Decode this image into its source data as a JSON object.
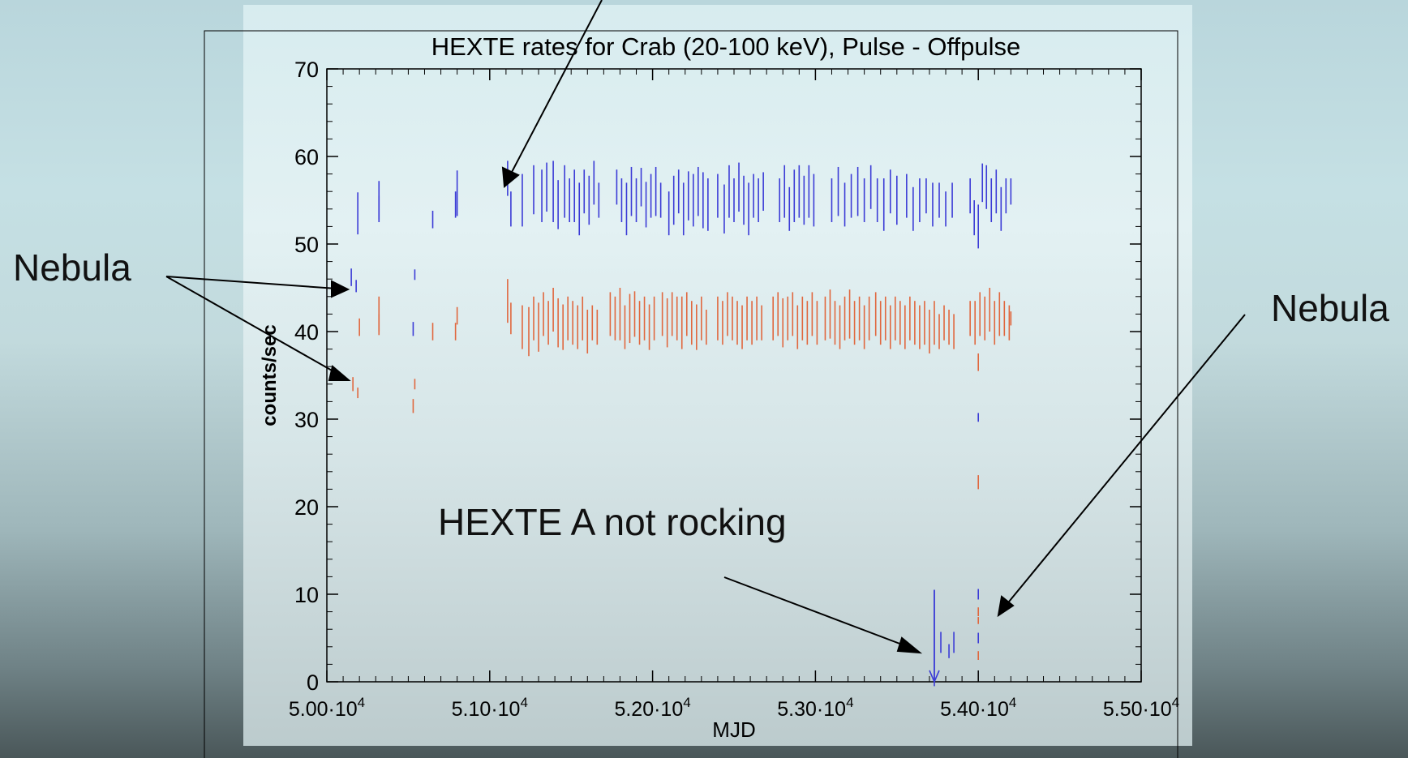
{
  "annotations": {
    "nebula_left": "Nebula",
    "nebula_right": "Nebula",
    "not_rocking": "HEXTE A not rocking"
  },
  "chart_data": {
    "type": "scatter",
    "title": "HEXTE rates for Crab (20-100 keV), Pulse - Offpulse",
    "xlabel": "MJD",
    "ylabel": "counts/sec",
    "xlim": [
      50000,
      55000
    ],
    "ylim": [
      0,
      70
    ],
    "x_ticks": [
      50000,
      51000,
      52000,
      53000,
      54000,
      55000
    ],
    "x_tick_labels": [
      {
        "mantissa": "5.00",
        "exp": "4"
      },
      {
        "mantissa": "5.10",
        "exp": "4"
      },
      {
        "mantissa": "5.20",
        "exp": "4"
      },
      {
        "mantissa": "5.30",
        "exp": "4"
      },
      {
        "mantissa": "5.40",
        "exp": "4"
      },
      {
        "mantissa": "5.50",
        "exp": "4"
      }
    ],
    "y_ticks": [
      0,
      10,
      20,
      30,
      40,
      50,
      60,
      70
    ],
    "y_tick_labels": [
      "0",
      "10",
      "20",
      "30",
      "40",
      "50",
      "60",
      "70"
    ],
    "grid": false,
    "legend": "none",
    "series": [
      {
        "color": "#3b3bd6",
        "points": [
          [
            50150,
            46.2,
            1.0
          ],
          [
            50180,
            45.2,
            0.7
          ],
          [
            50190,
            53.5,
            2.4
          ],
          [
            50320,
            55.0,
            2.2
          ],
          [
            50320,
            54.0,
            1.5
          ],
          [
            50540,
            46.5,
            0.6
          ],
          [
            50530,
            40.3,
            0.8
          ],
          [
            50650,
            52.8,
            1.0
          ],
          [
            50800,
            55.8,
            2.6
          ],
          [
            50790,
            54.5,
            1.5
          ],
          [
            51110,
            57.5,
            2.0
          ],
          [
            51130,
            54.0,
            2.0
          ],
          [
            51200,
            55.0,
            3.0
          ],
          [
            51270,
            56.2,
            2.8
          ],
          [
            51320,
            55.5,
            3.0
          ],
          [
            51350,
            56.5,
            2.8
          ],
          [
            51390,
            56.0,
            3.5
          ],
          [
            51420,
            54.5,
            2.8
          ],
          [
            51460,
            56.0,
            3.0
          ],
          [
            51490,
            55.0,
            2.5
          ],
          [
            51520,
            55.5,
            3.0
          ],
          [
            51550,
            54.0,
            3.0
          ],
          [
            51580,
            56.0,
            2.5
          ],
          [
            51610,
            55.0,
            2.8
          ],
          [
            51640,
            57.0,
            2.5
          ],
          [
            51670,
            55.0,
            2.0
          ],
          [
            51780,
            56.5,
            2.0
          ],
          [
            51810,
            55.0,
            2.5
          ],
          [
            51840,
            54.0,
            3.0
          ],
          [
            51870,
            56.0,
            2.8
          ],
          [
            51900,
            55.0,
            2.5
          ],
          [
            51930,
            56.5,
            2.2
          ],
          [
            51960,
            54.5,
            2.6
          ],
          [
            51990,
            55.5,
            2.5
          ],
          [
            52020,
            56.0,
            2.8
          ],
          [
            52050,
            55.0,
            2.0
          ],
          [
            52100,
            53.5,
            2.5
          ],
          [
            52130,
            55.0,
            2.8
          ],
          [
            52160,
            56.0,
            2.5
          ],
          [
            52190,
            54.0,
            3.0
          ],
          [
            52220,
            55.5,
            2.8
          ],
          [
            52250,
            55.0,
            3.0
          ],
          [
            52280,
            56.0,
            2.8
          ],
          [
            52310,
            55.0,
            3.2
          ],
          [
            52340,
            54.5,
            3.0
          ],
          [
            52400,
            55.5,
            2.5
          ],
          [
            52440,
            54.0,
            2.8
          ],
          [
            52470,
            56.0,
            3.0
          ],
          [
            52500,
            55.0,
            2.5
          ],
          [
            52530,
            56.5,
            2.8
          ],
          [
            52560,
            55.0,
            2.8
          ],
          [
            52590,
            54.0,
            3.0
          ],
          [
            52620,
            55.5,
            2.5
          ],
          [
            52650,
            55.0,
            2.5
          ],
          [
            52680,
            56.0,
            2.2
          ],
          [
            52780,
            55.0,
            2.5
          ],
          [
            52810,
            56.0,
            3.0
          ],
          [
            52840,
            54.0,
            2.5
          ],
          [
            52870,
            55.5,
            3.0
          ],
          [
            52900,
            56.0,
            3.0
          ],
          [
            52930,
            55.0,
            2.8
          ],
          [
            52960,
            56.0,
            3.0
          ],
          [
            52990,
            55.0,
            3.0
          ],
          [
            53100,
            55.0,
            2.5
          ],
          [
            53140,
            56.0,
            2.8
          ],
          [
            53180,
            54.5,
            2.5
          ],
          [
            53220,
            55.5,
            2.5
          ],
          [
            53260,
            56.0,
            2.8
          ],
          [
            53300,
            55.0,
            2.5
          ],
          [
            53340,
            56.5,
            2.5
          ],
          [
            53380,
            55.0,
            2.5
          ],
          [
            53420,
            54.5,
            3.0
          ],
          [
            53460,
            56.0,
            2.5
          ],
          [
            53500,
            55.0,
            2.8
          ],
          [
            53560,
            55.5,
            2.5
          ],
          [
            53600,
            54.0,
            2.5
          ],
          [
            53640,
            55.0,
            2.5
          ],
          [
            53680,
            55.5,
            2.0
          ],
          [
            53720,
            54.5,
            2.5
          ],
          [
            53760,
            55.0,
            2.0
          ],
          [
            53800,
            54.0,
            2.0
          ],
          [
            53840,
            55.0,
            2.0
          ],
          [
            53950,
            55.5,
            2.0
          ],
          [
            53975,
            53.0,
            2.0
          ],
          [
            54000,
            52.0,
            2.5
          ],
          [
            54025,
            57.0,
            2.2
          ],
          [
            54050,
            56.5,
            2.5
          ],
          [
            54080,
            55.0,
            2.5
          ],
          [
            54110,
            56.0,
            2.5
          ],
          [
            54140,
            54.0,
            2.5
          ],
          [
            54170,
            55.5,
            2.0
          ],
          [
            54200,
            56.0,
            1.5
          ],
          [
            54000,
            30.2,
            0.5
          ],
          [
            54000,
            10.0,
            0.6
          ],
          [
            54000,
            5.0,
            0.6
          ],
          [
            53770,
            4.5,
            1.2
          ],
          [
            53850,
            4.5,
            1.2
          ],
          [
            53820,
            3.5,
            0.8
          ],
          [
            53730,
            5.0,
            5.5
          ]
        ]
      },
      {
        "color": "#e0673e",
        "points": [
          [
            50160,
            34.0,
            0.8
          ],
          [
            50190,
            33.0,
            0.6
          ],
          [
            50200,
            40.5,
            1.0
          ],
          [
            50320,
            42.0,
            2.0
          ],
          [
            50320,
            40.8,
            1.2
          ],
          [
            50540,
            34.0,
            0.6
          ],
          [
            50530,
            31.5,
            0.8
          ],
          [
            50650,
            40.0,
            1.0
          ],
          [
            50800,
            41.8,
            1.0
          ],
          [
            50790,
            40.0,
            1.0
          ],
          [
            51110,
            43.5,
            2.5
          ],
          [
            51130,
            41.5,
            1.8
          ],
          [
            51200,
            40.5,
            2.5
          ],
          [
            51240,
            40.0,
            2.8
          ],
          [
            51270,
            41.5,
            2.5
          ],
          [
            51300,
            40.5,
            2.8
          ],
          [
            51330,
            42.0,
            2.5
          ],
          [
            51360,
            41.0,
            2.5
          ],
          [
            51390,
            42.5,
            2.5
          ],
          [
            51420,
            41.0,
            2.8
          ],
          [
            51450,
            40.5,
            2.6
          ],
          [
            51480,
            41.5,
            2.5
          ],
          [
            51510,
            41.0,
            2.5
          ],
          [
            51540,
            40.5,
            2.5
          ],
          [
            51570,
            41.5,
            2.5
          ],
          [
            51600,
            40.0,
            2.5
          ],
          [
            51630,
            41.0,
            2.0
          ],
          [
            51660,
            40.5,
            2.0
          ],
          [
            51740,
            42.0,
            2.5
          ],
          [
            51770,
            41.5,
            2.5
          ],
          [
            51800,
            42.0,
            3.0
          ],
          [
            51830,
            40.5,
            2.5
          ],
          [
            51860,
            41.5,
            2.8
          ],
          [
            51890,
            42.0,
            2.6
          ],
          [
            51920,
            41.0,
            2.5
          ],
          [
            51950,
            41.5,
            2.5
          ],
          [
            51980,
            40.5,
            2.6
          ],
          [
            52010,
            41.5,
            2.5
          ],
          [
            52060,
            42.0,
            2.5
          ],
          [
            52090,
            41.0,
            2.8
          ],
          [
            52120,
            42.0,
            2.5
          ],
          [
            52150,
            41.5,
            2.5
          ],
          [
            52180,
            41.0,
            3.0
          ],
          [
            52210,
            42.0,
            2.5
          ],
          [
            52240,
            41.0,
            2.5
          ],
          [
            52270,
            40.5,
            2.6
          ],
          [
            52300,
            41.5,
            2.5
          ],
          [
            52330,
            40.5,
            2.0
          ],
          [
            52400,
            41.5,
            2.5
          ],
          [
            52430,
            41.0,
            2.5
          ],
          [
            52460,
            42.0,
            2.5
          ],
          [
            52490,
            41.5,
            2.5
          ],
          [
            52520,
            41.0,
            2.5
          ],
          [
            52550,
            40.5,
            2.5
          ],
          [
            52580,
            41.5,
            2.5
          ],
          [
            52610,
            41.0,
            2.5
          ],
          [
            52640,
            41.5,
            2.5
          ],
          [
            52670,
            41.0,
            2.0
          ],
          [
            52740,
            41.5,
            2.5
          ],
          [
            52770,
            42.0,
            2.5
          ],
          [
            52800,
            41.0,
            2.8
          ],
          [
            52830,
            41.5,
            2.5
          ],
          [
            52860,
            42.0,
            2.5
          ],
          [
            52890,
            40.5,
            2.5
          ],
          [
            52920,
            41.5,
            2.5
          ],
          [
            52950,
            41.0,
            2.5
          ],
          [
            52980,
            42.0,
            2.5
          ],
          [
            53010,
            41.0,
            2.5
          ],
          [
            53060,
            41.5,
            2.5
          ],
          [
            53090,
            42.0,
            2.8
          ],
          [
            53120,
            41.0,
            2.5
          ],
          [
            53150,
            40.5,
            2.5
          ],
          [
            53180,
            41.5,
            2.5
          ],
          [
            53210,
            42.0,
            2.8
          ],
          [
            53240,
            41.0,
            2.5
          ],
          [
            53270,
            41.5,
            2.5
          ],
          [
            53300,
            40.5,
            2.5
          ],
          [
            53330,
            41.5,
            2.5
          ],
          [
            53370,
            42.0,
            2.5
          ],
          [
            53400,
            41.0,
            2.5
          ],
          [
            53430,
            41.5,
            2.5
          ],
          [
            53460,
            40.5,
            2.5
          ],
          [
            53490,
            41.5,
            2.5
          ],
          [
            53520,
            41.0,
            2.5
          ],
          [
            53550,
            40.5,
            2.5
          ],
          [
            53580,
            41.5,
            2.5
          ],
          [
            53610,
            41.0,
            2.5
          ],
          [
            53640,
            40.5,
            2.5
          ],
          [
            53670,
            41.0,
            2.5
          ],
          [
            53700,
            40.0,
            2.5
          ],
          [
            53730,
            41.0,
            2.5
          ],
          [
            53760,
            40.0,
            2.0
          ],
          [
            53790,
            41.0,
            2.0
          ],
          [
            53820,
            40.5,
            2.0
          ],
          [
            53850,
            40.0,
            2.0
          ],
          [
            53950,
            41.5,
            2.0
          ],
          [
            53980,
            41.0,
            2.5
          ],
          [
            54010,
            42.0,
            2.5
          ],
          [
            54040,
            41.5,
            2.5
          ],
          [
            54070,
            42.5,
            2.5
          ],
          [
            54100,
            41.0,
            2.5
          ],
          [
            54130,
            42.0,
            2.5
          ],
          [
            54160,
            41.5,
            2.0
          ],
          [
            54190,
            41.0,
            2.0
          ],
          [
            54200,
            41.5,
            0.8
          ],
          [
            54000,
            36.5,
            1.0
          ],
          [
            54000,
            22.8,
            0.8
          ],
          [
            54000,
            8.0,
            0.5
          ],
          [
            54000,
            7.0,
            0.4
          ],
          [
            54000,
            3.0,
            0.5
          ]
        ]
      }
    ]
  }
}
